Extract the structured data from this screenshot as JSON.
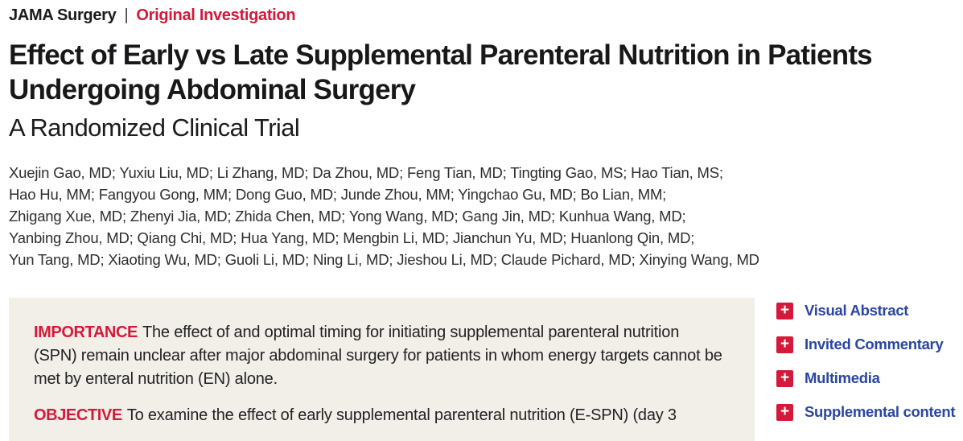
{
  "header": {
    "journal": "JAMA Surgery",
    "separator": "|",
    "category": "Original Investigation"
  },
  "article": {
    "title": "Effect of Early vs Late Supplemental Parenteral Nutrition in Patients Undergoing Abdominal Surgery",
    "subtitle": "A Randomized Clinical Trial"
  },
  "authors": {
    "lines": [
      "Xuejin Gao, MD; Yuxiu Liu, MD; Li Zhang, MD; Da Zhou, MD; Feng Tian, MD; Tingting Gao, MS; Hao Tian, MS;",
      "Hao Hu, MM; Fangyou Gong, MM; Dong Guo, MD; Junde Zhou, MM; Yingchao Gu, MD; Bo Lian, MM;",
      "Zhigang Xue, MD; Zhenyi Jia, MD; Zhida Chen, MD; Yong Wang, MD; Gang Jin, MD; Kunhua Wang, MD;",
      "Yanbing Zhou, MD; Qiang Chi, MD; Hua Yang, MD; Mengbin Li, MD; Jianchun Yu, MD; Huanlong Qin, MD;",
      "Yun Tang, MD; Xiaoting Wu, MD; Guoli Li, MD; Ning Li, MD; Jieshou Li, MD; Claude Pichard, MD; Xinying Wang, MD"
    ]
  },
  "abstract": {
    "sections": [
      {
        "label": "IMPORTANCE",
        "text": "The effect of and optimal timing for initiating supplemental parenteral nutrition (SPN) remain unclear after major abdominal surgery for patients in whom energy targets cannot be met by enteral nutrition (EN) alone."
      },
      {
        "label": "OBJECTIVE",
        "text": "To examine the effect of early supplemental parenteral nutrition (E-SPN) (day 3"
      }
    ]
  },
  "sidebar": {
    "icon_glyph": "+",
    "items": [
      {
        "label": "Visual Abstract"
      },
      {
        "label": "Invited Commentary"
      },
      {
        "label": "Multimedia"
      },
      {
        "label": "Supplemental content"
      }
    ]
  },
  "colors": {
    "accent_red": "#d5193b",
    "link_blue": "#2a46a4",
    "abstract_background": "#f2efe8"
  }
}
